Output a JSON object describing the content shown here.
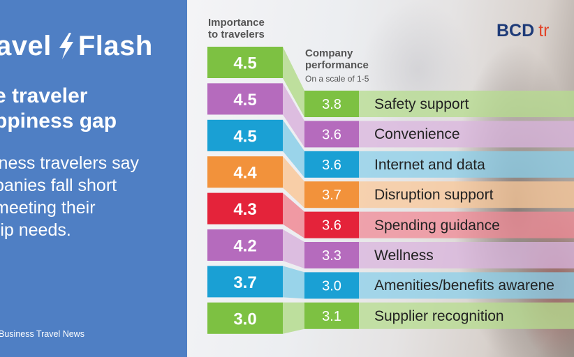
{
  "brand": {
    "part1": "avel",
    "part2": "Flash",
    "bolt_icon": "lightning-bolt-icon"
  },
  "headline": {
    "line1": "e traveler",
    "line2": "ppiness gap"
  },
  "body_text": {
    "line1": "iness travelers say",
    "line2": "panies fall short",
    "line3": "meeting their",
    "line4": "rip needs."
  },
  "source": "Business Travel News",
  "logo": {
    "part1": "BCD",
    "part2": "tr"
  },
  "headers": {
    "importance": [
      "Importance",
      "to travelers"
    ],
    "performance": [
      "Company",
      "performance"
    ],
    "performance_sub": "On a scale of 1-5"
  },
  "chart_data": {
    "type": "bar",
    "categories": [
      "Safety support",
      "Convenience",
      "Internet and data",
      "Disruption support",
      "Spending guidance",
      "Wellness",
      "Amenities/benefits awarene",
      "Supplier recognition"
    ],
    "series": [
      {
        "name": "Importance to travelers",
        "values": [
          4.5,
          4.5,
          4.5,
          4.4,
          4.3,
          4.2,
          3.7,
          3.0
        ]
      },
      {
        "name": "Company performance",
        "values": [
          3.8,
          3.6,
          3.6,
          3.7,
          3.6,
          3.3,
          3.0,
          3.1
        ]
      }
    ],
    "colors": [
      "#7dc142",
      "#b56bbd",
      "#1aa0d4",
      "#f2923b",
      "#e4233a",
      "#b56bbd",
      "#1aa0d4",
      "#7dc142"
    ],
    "light_colors": [
      "#b5dc8e",
      "#d9b4dd",
      "#8bcfe9",
      "#f9c89a",
      "#f08a95",
      "#d9b4dd",
      "#8bcfe9",
      "#b5dc8e"
    ],
    "scale": [
      1,
      5
    ]
  }
}
